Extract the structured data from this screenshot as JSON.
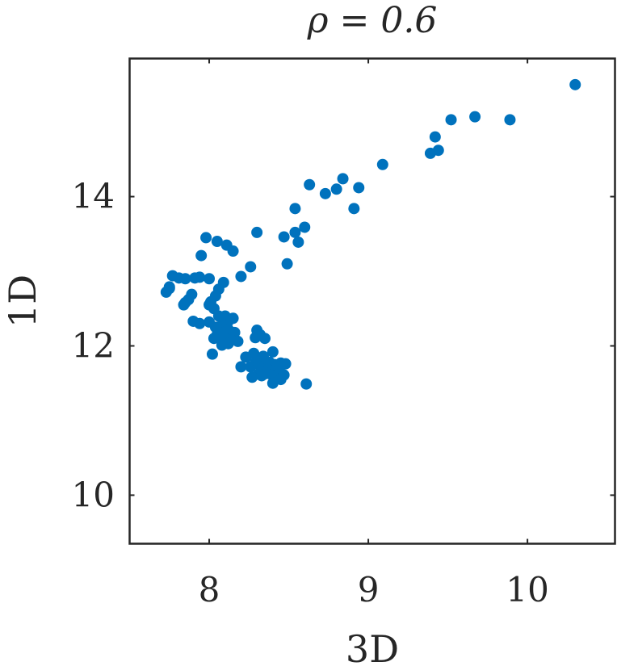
{
  "chart_data": {
    "type": "scatter",
    "title": "ρ = 0.6",
    "xlabel": "3D",
    "ylabel": "1D",
    "xlim": [
      7.5,
      10.55
    ],
    "ylim": [
      9.35,
      15.85
    ],
    "xticks": [
      8,
      9,
      10
    ],
    "yticks": [
      10,
      12,
      14
    ],
    "xtick_labels": [
      "8",
      "9",
      "10"
    ],
    "ytick_labels": [
      "10",
      "12",
      "14"
    ],
    "grid": false,
    "color": "#0072BD",
    "points": [
      [
        10.3,
        15.5
      ],
      [
        9.67,
        15.07
      ],
      [
        9.52,
        15.03
      ],
      [
        9.89,
        15.03
      ],
      [
        9.42,
        14.8
      ],
      [
        9.44,
        14.62
      ],
      [
        9.39,
        14.58
      ],
      [
        9.09,
        14.43
      ],
      [
        8.84,
        14.24
      ],
      [
        8.63,
        14.16
      ],
      [
        8.94,
        14.12
      ],
      [
        8.8,
        14.1
      ],
      [
        8.73,
        14.04
      ],
      [
        8.91,
        13.84
      ],
      [
        8.54,
        13.84
      ],
      [
        8.6,
        13.59
      ],
      [
        8.54,
        13.52
      ],
      [
        8.56,
        13.39
      ],
      [
        8.3,
        13.52
      ],
      [
        8.47,
        13.46
      ],
      [
        7.98,
        13.45
      ],
      [
        8.05,
        13.4
      ],
      [
        8.11,
        13.35
      ],
      [
        8.15,
        13.27
      ],
      [
        7.95,
        13.21
      ],
      [
        8.26,
        13.06
      ],
      [
        8.49,
        13.1
      ],
      [
        7.77,
        12.94
      ],
      [
        7.81,
        12.91
      ],
      [
        7.85,
        12.9
      ],
      [
        7.91,
        12.91
      ],
      [
        7.94,
        12.92
      ],
      [
        8.0,
        12.9
      ],
      [
        8.2,
        12.93
      ],
      [
        7.75,
        12.79
      ],
      [
        7.73,
        12.72
      ],
      [
        7.75,
        12.77
      ],
      [
        8.09,
        12.85
      ],
      [
        7.89,
        12.69
      ],
      [
        7.87,
        12.62
      ],
      [
        7.85,
        12.58
      ],
      [
        8.06,
        12.76
      ],
      [
        7.84,
        12.55
      ],
      [
        8.04,
        12.67
      ],
      [
        8.01,
        12.59
      ],
      [
        8.0,
        12.55
      ],
      [
        8.03,
        12.5
      ],
      [
        7.9,
        12.33
      ],
      [
        7.94,
        12.3
      ],
      [
        8.0,
        12.32
      ],
      [
        8.06,
        12.4
      ],
      [
        8.1,
        12.4
      ],
      [
        8.12,
        12.33
      ],
      [
        8.15,
        12.37
      ],
      [
        8.08,
        12.28
      ],
      [
        8.12,
        12.22
      ],
      [
        8.04,
        12.25
      ],
      [
        8.07,
        12.22
      ],
      [
        8.1,
        12.19
      ],
      [
        8.16,
        12.18
      ],
      [
        8.05,
        12.15
      ],
      [
        8.09,
        12.12
      ],
      [
        8.14,
        12.08
      ],
      [
        8.18,
        12.06
      ],
      [
        8.03,
        12.1
      ],
      [
        8.12,
        12.03
      ],
      [
        8.08,
        12.01
      ],
      [
        8.02,
        11.89
      ],
      [
        8.3,
        12.21
      ],
      [
        8.32,
        12.15
      ],
      [
        8.29,
        12.11
      ],
      [
        8.35,
        12.1
      ],
      [
        8.28,
        11.9
      ],
      [
        8.23,
        11.85
      ],
      [
        8.34,
        11.86
      ],
      [
        8.4,
        11.92
      ],
      [
        8.26,
        11.72
      ],
      [
        8.29,
        11.78
      ],
      [
        8.31,
        11.75
      ],
      [
        8.35,
        11.74
      ],
      [
        8.38,
        11.78
      ],
      [
        8.41,
        11.75
      ],
      [
        8.45,
        11.77
      ],
      [
        8.48,
        11.76
      ],
      [
        8.33,
        11.69
      ],
      [
        8.37,
        11.68
      ],
      [
        8.42,
        11.66
      ],
      [
        8.44,
        11.7
      ],
      [
        8.2,
        11.72
      ],
      [
        8.31,
        11.62
      ],
      [
        8.33,
        11.6
      ],
      [
        8.36,
        11.63
      ],
      [
        8.4,
        11.6
      ],
      [
        8.47,
        11.61
      ],
      [
        8.27,
        11.58
      ],
      [
        8.45,
        11.55
      ],
      [
        8.4,
        11.5
      ],
      [
        8.61,
        11.49
      ]
    ]
  }
}
